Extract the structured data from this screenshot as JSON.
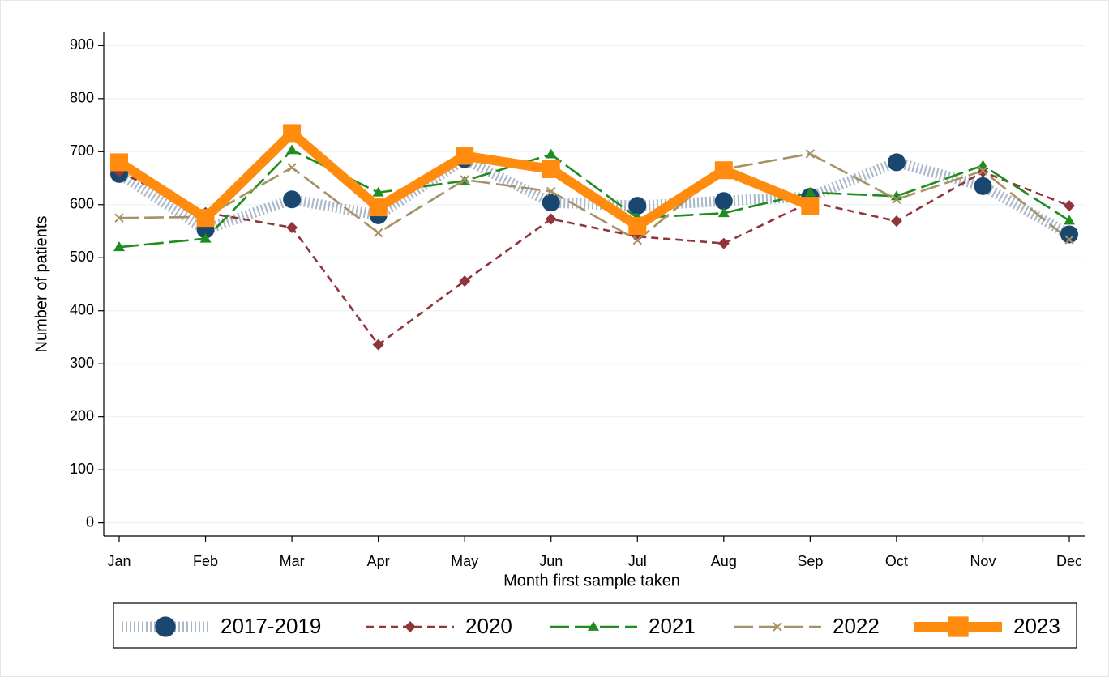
{
  "chart_data": {
    "type": "line",
    "x_label": "Month first sample taken",
    "y_label": "Number of patients",
    "categories": [
      "Jan",
      "Feb",
      "Mar",
      "Apr",
      "May",
      "Jun",
      "Jul",
      "Aug",
      "Sep",
      "Oct",
      "Nov",
      "Dec"
    ],
    "ylim": [
      -25,
      925
    ],
    "yticks": [
      0,
      100,
      200,
      300,
      400,
      500,
      600,
      700,
      800,
      900
    ],
    "grid": true,
    "legend": "bottom",
    "series": [
      {
        "name": "2017-2019",
        "color": "#1a476f",
        "line_color": "#a9b7c8",
        "marker": "circle",
        "dash": "dotted",
        "values": [
          658,
          553,
          610,
          580,
          686,
          604,
          598,
          607,
          615,
          680,
          635,
          544
        ]
      },
      {
        "name": "2020",
        "color": "#90353b",
        "marker": "diamond",
        "dash": "dashed",
        "values": [
          662,
          585,
          557,
          336,
          456,
          573,
          540,
          527,
          605,
          569,
          662,
          598
        ]
      },
      {
        "name": "2021",
        "color": "#1e8c1e",
        "marker": "triangle",
        "dash": "longdash",
        "values": [
          520,
          536,
          703,
          623,
          645,
          695,
          575,
          584,
          623,
          616,
          674,
          570
        ]
      },
      {
        "name": "2022",
        "color": "#a69264",
        "marker": "x",
        "dash": "longdash",
        "values": [
          575,
          577,
          670,
          547,
          647,
          625,
          533,
          667,
          696,
          610,
          664,
          534
        ]
      },
      {
        "name": "2023",
        "color": "#ff8c0f",
        "marker": "square",
        "dash": "solid",
        "values": [
          680,
          575,
          735,
          595,
          692,
          667,
          560,
          665,
          598,
          null,
          null,
          null
        ]
      }
    ]
  }
}
